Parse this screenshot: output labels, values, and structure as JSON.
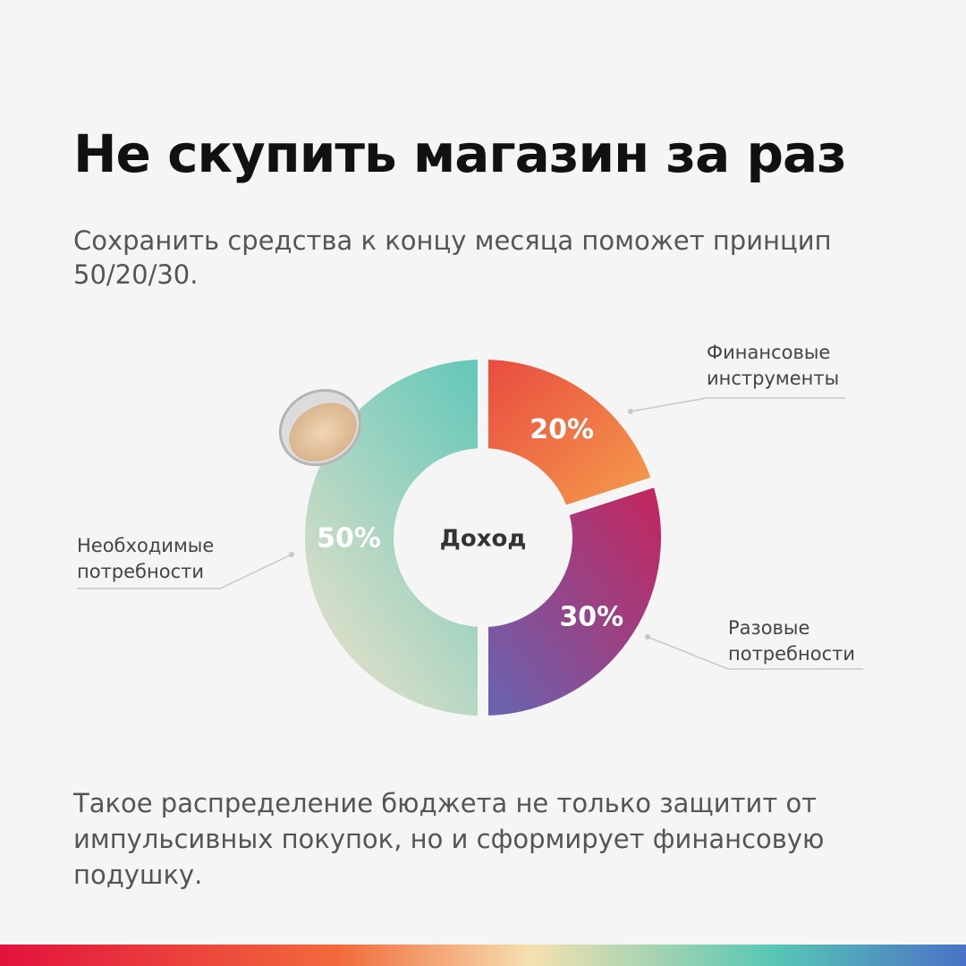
{
  "chart_data": {
    "type": "donut",
    "title": "Не скупить магазин за раз",
    "subtitle": "Сохранить средства к концу месяца поможет принцип 50/20/30.",
    "center_label": "Доход",
    "categories": [
      "Финансовые инструменты",
      "Разовые потребности",
      "Необходимые потребности"
    ],
    "values": [
      20,
      30,
      50
    ],
    "value_labels": [
      "20%",
      "30%",
      "50%"
    ],
    "colors": [
      [
        "#e8493f",
        "#f6a04c"
      ],
      [
        "#c8235a",
        "#6466b4"
      ],
      [
        "#5fc7b9",
        "#e3e0c9"
      ]
    ],
    "footer": "Такое распределение бюджета не только защитит от импульсивных покупок, но и сформирует финансовую подушку."
  }
}
